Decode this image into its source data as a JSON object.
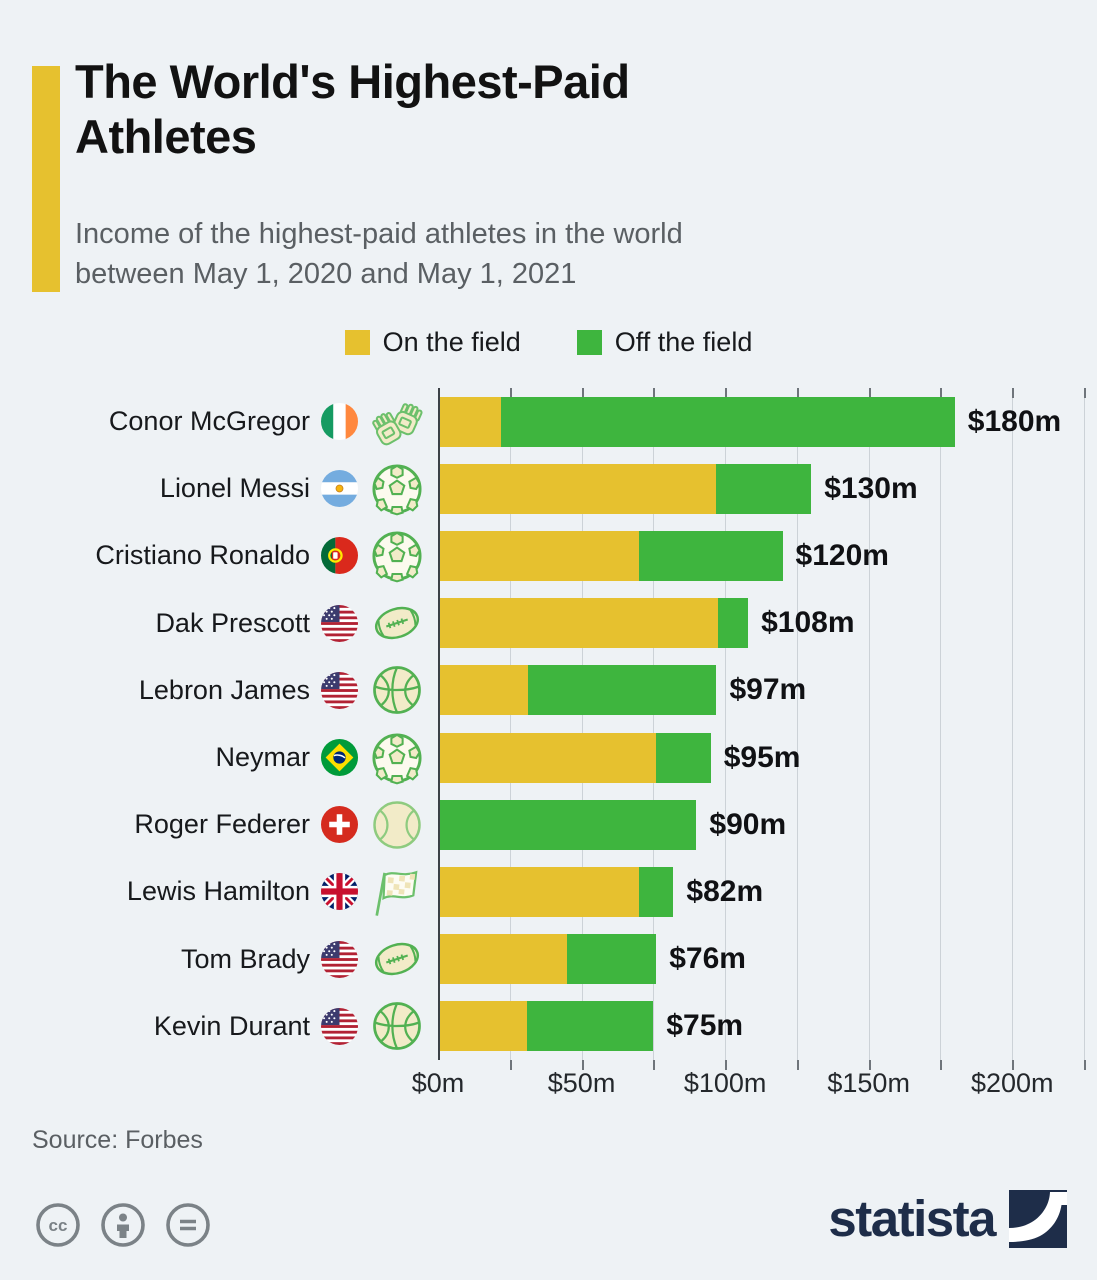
{
  "header": {
    "title_lines": [
      "The World's Highest-Paid",
      "Athletes"
    ],
    "subtitle_lines": [
      "Income of the highest-paid athletes in the world",
      "between May 1, 2020 and May 1, 2021"
    ]
  },
  "legend": {
    "items": [
      {
        "label": "On the field",
        "color": "#e6c12f"
      },
      {
        "label": "Off the field",
        "color": "#3eb53e"
      }
    ]
  },
  "chart_data": {
    "type": "bar",
    "orientation": "horizontal",
    "stacked": true,
    "unit": "million USD",
    "series_names": [
      "On the field",
      "Off the field"
    ],
    "x_ticks": [
      "$0m",
      "$50m",
      "$100m",
      "$150m",
      "$200m"
    ],
    "xlim": [
      0,
      225
    ],
    "x_domain_max": 225,
    "gridline_step_m": 25,
    "rows": [
      {
        "name": "Conor McGregor",
        "flag": "ireland-flag",
        "icon": "mma-gloves-icon",
        "on_field": 22,
        "off_field": 158,
        "total": 180,
        "total_label": "$180m"
      },
      {
        "name": "Lionel Messi",
        "flag": "argentina-flag",
        "icon": "soccer-ball-icon",
        "on_field": 97,
        "off_field": 33,
        "total": 130,
        "total_label": "$130m"
      },
      {
        "name": "Cristiano Ronaldo",
        "flag": "portugal-flag",
        "icon": "soccer-ball-icon",
        "on_field": 70,
        "off_field": 50,
        "total": 120,
        "total_label": "$120m"
      },
      {
        "name": "Dak Prescott",
        "flag": "usa-flag",
        "icon": "american-football-icon",
        "on_field": 97.5,
        "off_field": 10.5,
        "total": 108,
        "total_label": "$108m"
      },
      {
        "name": "Lebron James",
        "flag": "usa-flag",
        "icon": "basketball-icon",
        "on_field": 31.5,
        "off_field": 65.5,
        "total": 97,
        "total_label": "$97m"
      },
      {
        "name": "Neymar",
        "flag": "brazil-flag",
        "icon": "soccer-ball-icon",
        "on_field": 76,
        "off_field": 19,
        "total": 95,
        "total_label": "$95m"
      },
      {
        "name": "Roger Federer",
        "flag": "switzerland-flag",
        "icon": "tennis-ball-icon",
        "on_field": 0,
        "off_field": 90,
        "total": 90,
        "total_label": "$90m"
      },
      {
        "name": "Lewis Hamilton",
        "flag": "uk-flag",
        "icon": "racing-flag-icon",
        "on_field": 70,
        "off_field": 12,
        "total": 82,
        "total_label": "$82m"
      },
      {
        "name": "Tom Brady",
        "flag": "usa-flag",
        "icon": "american-football-icon",
        "on_field": 45,
        "off_field": 31,
        "total": 76,
        "total_label": "$76m"
      },
      {
        "name": "Kevin Durant",
        "flag": "usa-flag",
        "icon": "basketball-icon",
        "on_field": 31,
        "off_field": 44,
        "total": 75,
        "total_label": "$75m"
      }
    ]
  },
  "footer": {
    "source": "Source: Forbes",
    "license_icons": [
      "cc-icon",
      "attribution-icon",
      "no-derivatives-icon"
    ],
    "brand": "statista"
  },
  "colors": {
    "background": "#eef2f5",
    "on_field": "#e6c12f",
    "off_field": "#3eb53e",
    "accent_bar": "#e6c12f",
    "brand_navy": "#1e2d49",
    "icon_stroke_green": "#5fbc5f",
    "icon_fill_cream": "#f2ebc8"
  }
}
